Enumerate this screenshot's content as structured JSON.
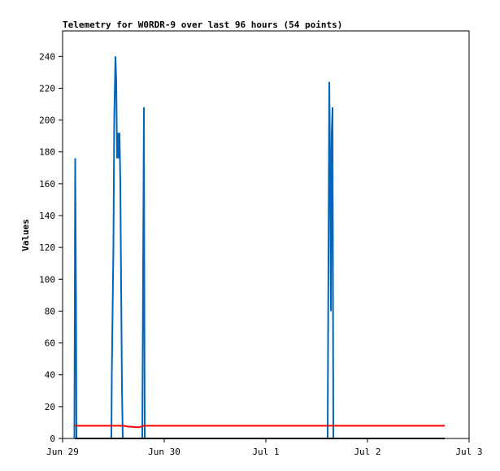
{
  "chart_data": {
    "type": "line",
    "title": "Telemetry for W0RDR-9 over last 96 hours (54 points)",
    "ylabel": "Values",
    "xlim": [
      0,
      4
    ],
    "xticks": [
      {
        "value": 0,
        "label": "Jun 29"
      },
      {
        "value": 1,
        "label": "Jun 30"
      },
      {
        "value": 2,
        "label": "Jul 1"
      },
      {
        "value": 3,
        "label": "Jul 2"
      },
      {
        "value": 4,
        "label": "Jul 3"
      }
    ],
    "ylim": [
      0,
      256
    ],
    "yticks": [
      0,
      20,
      40,
      60,
      80,
      100,
      120,
      140,
      160,
      180,
      200,
      220,
      240
    ],
    "series": [
      {
        "color": "#000000",
        "x": [
          0.124,
          3.76
        ],
        "values": [
          0,
          0
        ]
      },
      {
        "color": "#ff0000",
        "x": [
          0.124,
          0.6,
          0.64,
          0.75,
          0.8,
          3.76
        ],
        "values": [
          8,
          8,
          7.5,
          7,
          8,
          8
        ]
      },
      {
        "color": "#0066bb",
        "x": [
          0.116,
          0.124,
          0.132,
          0.136,
          0.48,
          0.484,
          0.492,
          0.5,
          0.508,
          0.52,
          0.528,
          0.536,
          0.544,
          0.552,
          0.56,
          0.568,
          0.576,
          0.584,
          0.592,
          0.784,
          0.792,
          0.8,
          0.808,
          2.608,
          2.616,
          2.624,
          2.632,
          2.64,
          2.648,
          2.656,
          2.664
        ],
        "values": [
          0,
          176,
          88,
          0,
          0,
          40,
          80,
          120,
          200,
          240,
          224,
          176,
          192,
          176,
          192,
          160,
          96,
          32,
          0,
          0,
          104,
          208,
          0,
          0,
          112,
          224,
          172,
          80,
          192,
          208,
          0
        ]
      }
    ]
  }
}
